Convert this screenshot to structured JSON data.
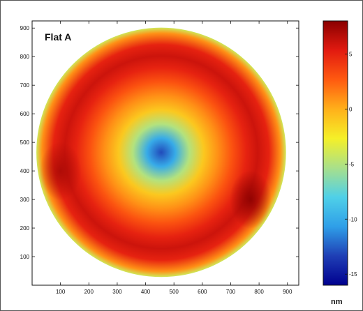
{
  "chart_data": {
    "type": "heatmap",
    "title": "Flat A",
    "xlabel": "",
    "ylabel": "",
    "x_ticks": [
      100,
      200,
      300,
      400,
      500,
      600,
      700,
      800,
      900
    ],
    "y_ticks": [
      100,
      200,
      300,
      400,
      500,
      600,
      700,
      800,
      900
    ],
    "xlim": [
      0,
      940
    ],
    "ylim": [
      0,
      925
    ],
    "surface": {
      "shape": "circle",
      "center": [
        455,
        465
      ],
      "radius": 440,
      "radial_profile": [
        {
          "r": 0,
          "value": -13
        },
        {
          "r": 50,
          "value": -10
        },
        {
          "r": 100,
          "value": -5
        },
        {
          "r": 150,
          "value": -1
        },
        {
          "r": 200,
          "value": 1
        },
        {
          "r": 250,
          "value": 3
        },
        {
          "r": 300,
          "value": 5
        },
        {
          "r": 340,
          "value": 6
        },
        {
          "r": 380,
          "value": 5
        },
        {
          "r": 420,
          "value": 1
        },
        {
          "r": 440,
          "value": -4
        }
      ],
      "hot_spots": [
        {
          "x": 770,
          "y": 300,
          "value": 8
        },
        {
          "x": 100,
          "y": 400,
          "value": 7
        }
      ]
    },
    "colorbar": {
      "label": "nm",
      "range": [
        -16,
        8
      ],
      "ticks": [
        5,
        0,
        -5,
        -10,
        -15
      ],
      "colormap": [
        "#00008f",
        "#1f3fb5",
        "#2f9fe8",
        "#4fd0e8",
        "#a9e08a",
        "#f5f028",
        "#ffb01a",
        "#ff5a10",
        "#e21a10",
        "#8a0000"
      ]
    }
  }
}
